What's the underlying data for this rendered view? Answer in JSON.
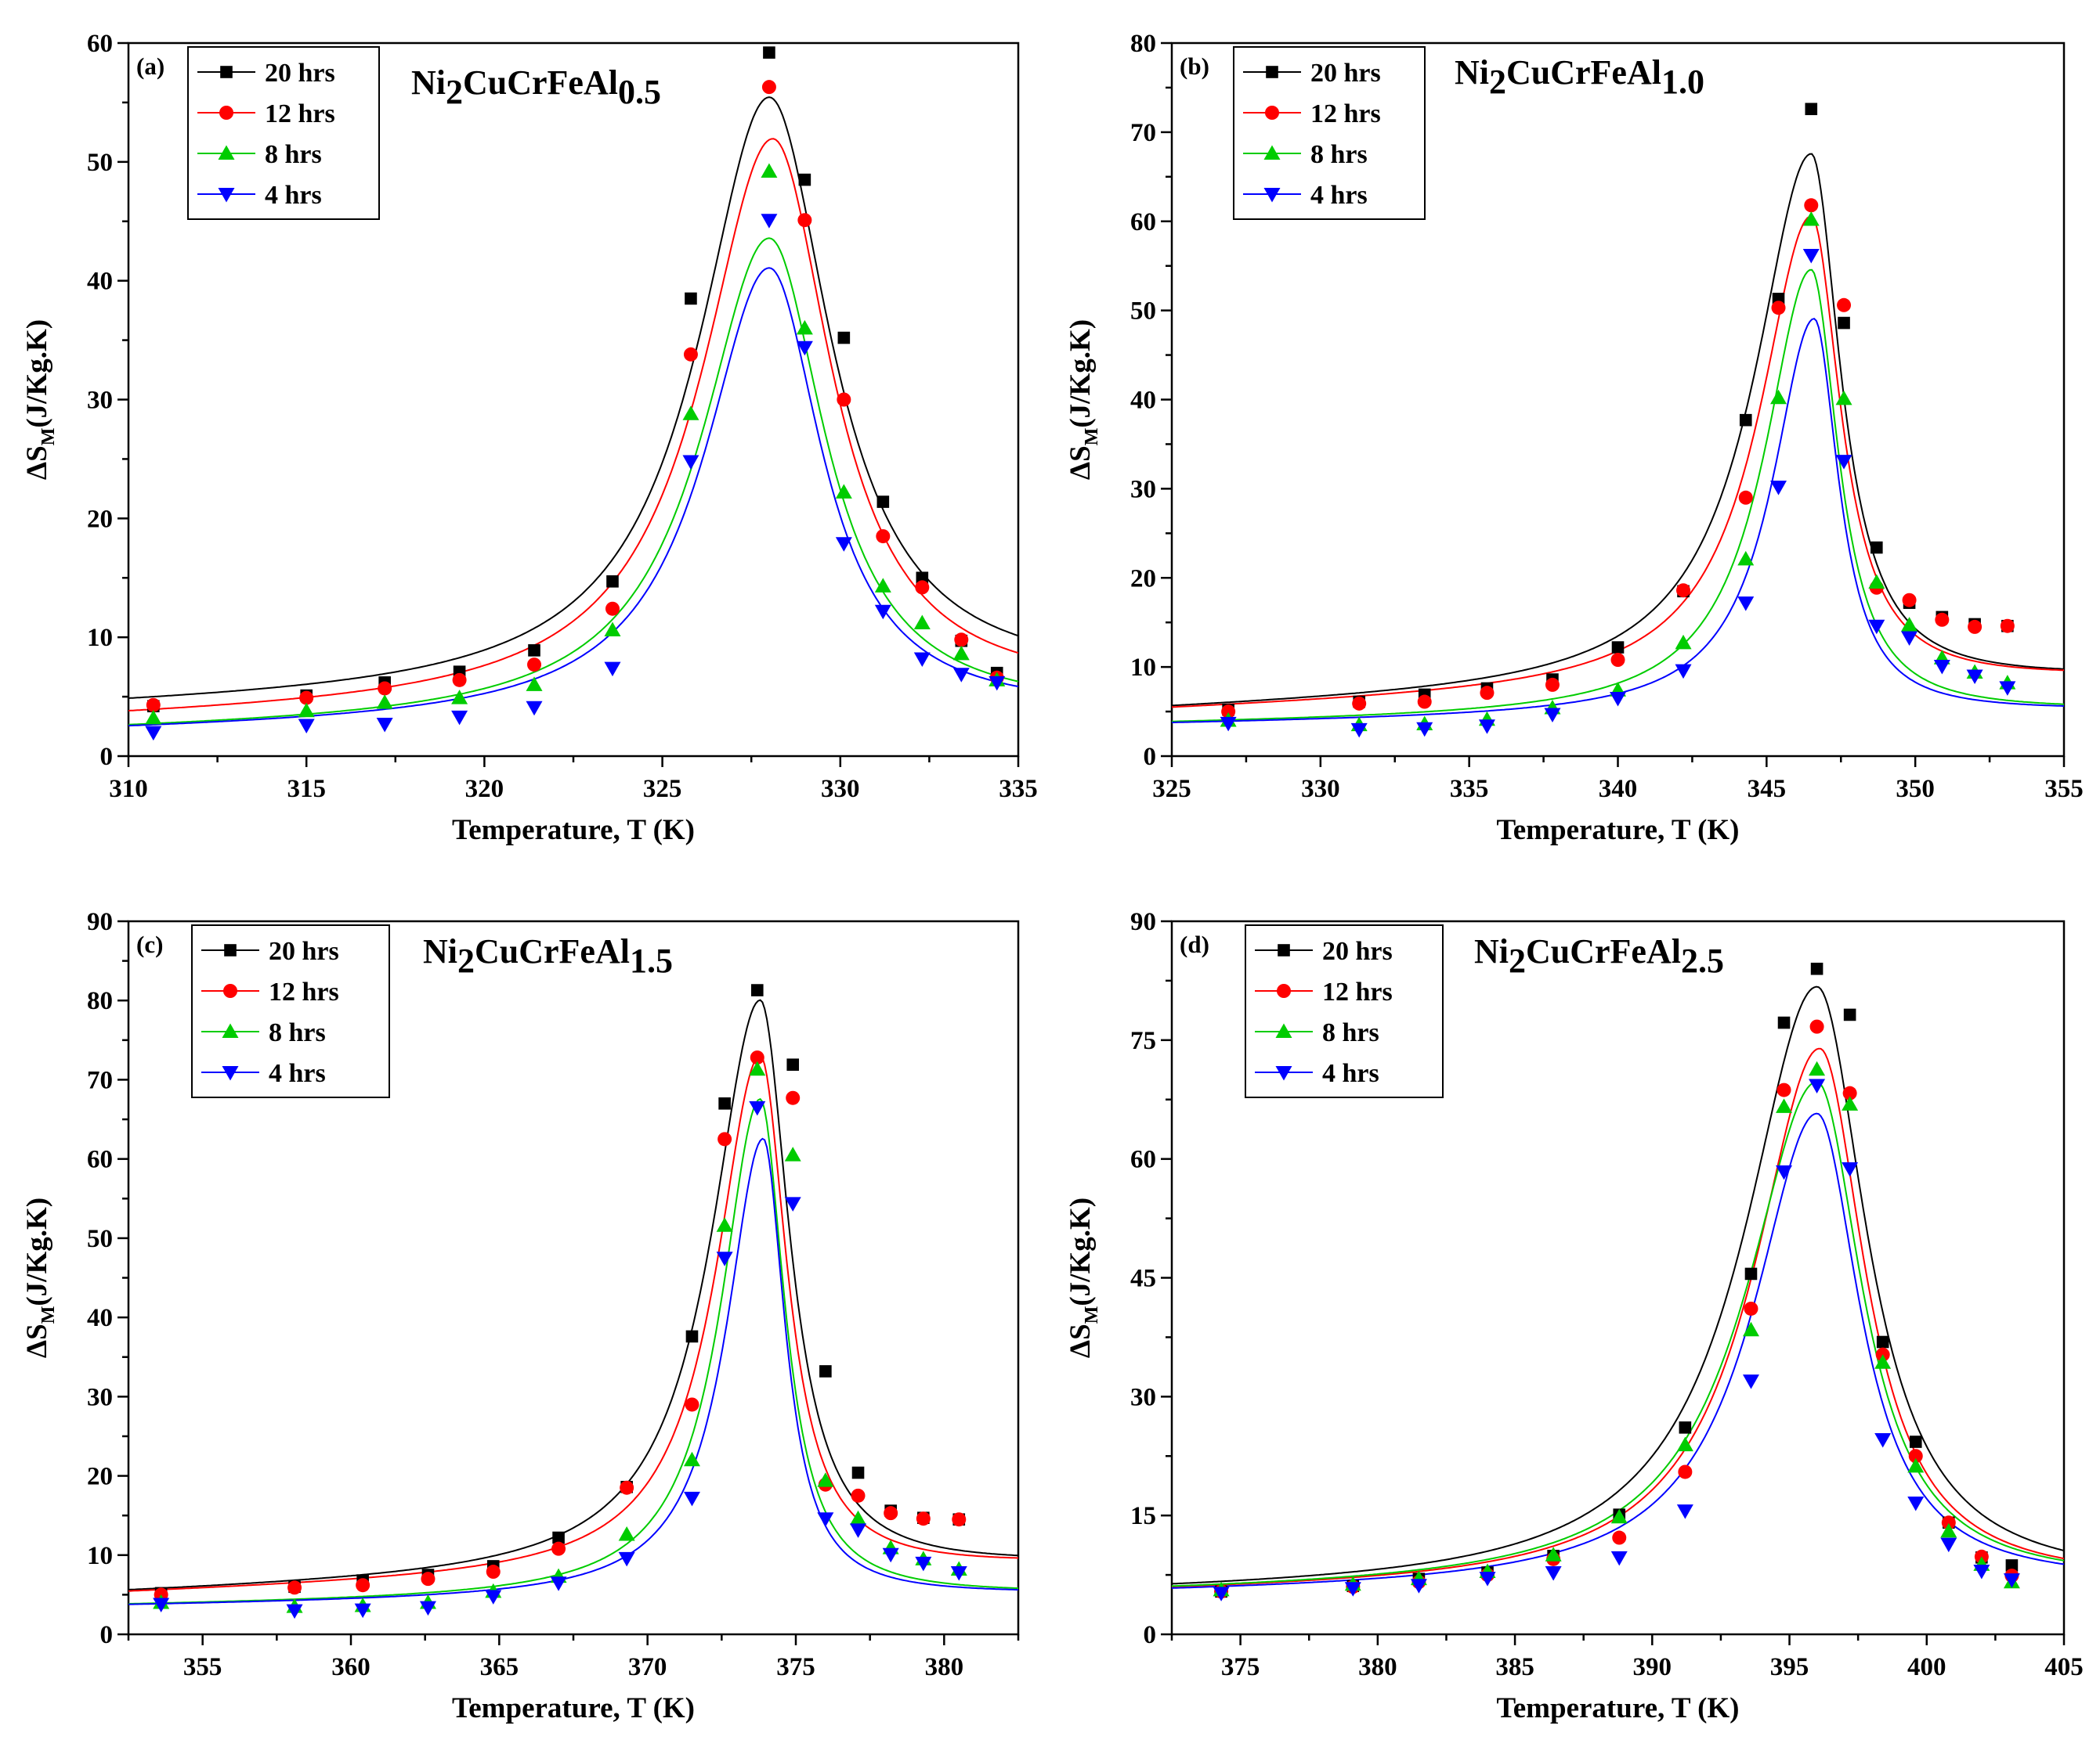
{
  "figure": {
    "legend_labels": [
      "20 hrs",
      "12 hrs",
      "8 hrs",
      "4 hrs"
    ],
    "series_colors": [
      "#000000",
      "#ff0000",
      "#00cc00",
      "#0000ff"
    ],
    "marker_shapes": [
      "square",
      "circle",
      "triangle-up",
      "triangle-down"
    ]
  },
  "chart_data": [
    {
      "type": "scatter",
      "panel": "(a)",
      "title_main": "Ni",
      "title_sub1": "2",
      "title_mid": "CuCrFeAl",
      "title_sub2": "0.5",
      "xlabel": "Temperature, T (K)",
      "ylabel_main": "ΔS",
      "ylabel_sub": "M",
      "ylabel_tail": "(J/Kg.K)",
      "xlim": [
        310,
        335
      ],
      "ylim": [
        0,
        60
      ],
      "xticks": [
        310,
        315,
        320,
        325,
        330,
        335
      ],
      "yticks": [
        0,
        10,
        20,
        30,
        40,
        50,
        60
      ],
      "fit": {
        "base": [
          4.0,
          3.0,
          2.0,
          2.0
        ],
        "slope": [
          0.08,
          0.08,
          0.06,
          0.06
        ],
        "amp": [
          50.0,
          47.5,
          40.5,
          38.0
        ],
        "center": [
          328.0,
          328.1,
          328.0,
          328.0
        ],
        "hl": [
          2.4,
          2.4,
          2.3,
          2.2
        ],
        "hr": [
          2.1,
          2.0,
          1.9,
          1.8
        ]
      },
      "series": [
        {
          "name": "20 hrs",
          "x": [
            310.7,
            315.0,
            317.2,
            319.3,
            321.4,
            323.6,
            325.8,
            328.0,
            329.0,
            330.1,
            331.2,
            332.3,
            333.4,
            334.4
          ],
          "y": [
            4.2,
            5.1,
            6.2,
            7.1,
            8.9,
            14.7,
            38.5,
            59.2,
            48.5,
            35.2,
            21.4,
            15.0,
            9.7,
            7.0
          ]
        },
        {
          "name": "12 hrs",
          "x": [
            310.7,
            315.0,
            317.2,
            319.3,
            321.4,
            323.6,
            325.8,
            328.0,
            329.0,
            330.1,
            331.2,
            332.3,
            333.4,
            334.4
          ],
          "y": [
            4.3,
            4.9,
            5.7,
            6.4,
            7.7,
            12.4,
            33.8,
            56.3,
            45.1,
            30.0,
            18.5,
            14.2,
            9.8,
            6.6
          ]
        },
        {
          "name": "8 hrs",
          "x": [
            310.7,
            315.0,
            317.2,
            319.3,
            321.4,
            323.6,
            325.8,
            328.0,
            329.0,
            330.1,
            331.2,
            332.3,
            333.4,
            334.4
          ],
          "y": [
            3.2,
            3.8,
            4.5,
            4.9,
            6.0,
            10.6,
            28.8,
            49.2,
            36.0,
            22.2,
            14.3,
            11.2,
            8.6,
            6.4
          ]
        },
        {
          "name": "4 hrs",
          "x": [
            310.7,
            315.0,
            317.2,
            319.3,
            321.4,
            323.6,
            325.8,
            328.0,
            329.0,
            330.1,
            331.2,
            332.3,
            333.4,
            334.4
          ],
          "y": [
            2.0,
            2.6,
            2.7,
            3.3,
            4.1,
            7.4,
            24.8,
            45.1,
            34.4,
            17.9,
            12.2,
            8.2,
            6.9,
            6.2
          ]
        }
      ]
    },
    {
      "type": "scatter",
      "panel": "(b)",
      "title_main": "Ni",
      "title_sub1": "2",
      "title_mid": "CuCrFeAl",
      "title_sub2": "1.0",
      "xlabel": "Temperature, T (K)",
      "ylabel_main": "ΔS",
      "ylabel_sub": "M",
      "ylabel_tail": "(J/Kg.K)",
      "xlim": [
        325,
        355
      ],
      "ylim": [
        0,
        80
      ],
      "xticks": [
        325,
        330,
        335,
        340,
        345,
        350,
        355
      ],
      "yticks": [
        0,
        10,
        20,
        30,
        40,
        50,
        60,
        70,
        80
      ],
      "fit": {
        "base": [
          5.0,
          5.0,
          3.5,
          3.5
        ],
        "slope": [
          0.12,
          0.12,
          0.05,
          0.05
        ],
        "amp": [
          60.0,
          53.0,
          50.0,
          44.5
        ],
        "center": [
          346.5,
          346.5,
          346.5,
          346.6
        ],
        "hl": [
          2.3,
          2.1,
          1.9,
          1.7
        ],
        "hr": [
          1.2,
          1.2,
          1.1,
          1.0
        ]
      },
      "series": [
        {
          "name": "20 hrs",
          "x": [
            326.9,
            331.3,
            333.5,
            335.6,
            337.8,
            340.0,
            342.2,
            344.3,
            345.4,
            346.5,
            347.6,
            348.7,
            349.8,
            350.9,
            352.0,
            353.1
          ],
          "y": [
            5.2,
            6.1,
            6.9,
            7.6,
            8.6,
            12.2,
            18.5,
            37.7,
            51.3,
            72.6,
            48.6,
            23.4,
            17.2,
            15.6,
            14.8,
            14.6
          ]
        },
        {
          "name": "12 hrs",
          "x": [
            326.9,
            331.3,
            333.5,
            335.6,
            337.8,
            340.0,
            342.2,
            344.3,
            345.4,
            346.5,
            347.6,
            348.7,
            349.8,
            350.9,
            352.0,
            353.1
          ],
          "y": [
            5.0,
            5.9,
            6.1,
            7.1,
            8.0,
            10.8,
            18.6,
            29.0,
            50.3,
            61.8,
            50.6,
            18.9,
            17.5,
            15.3,
            14.5,
            14.6
          ]
        },
        {
          "name": "8 hrs",
          "x": [
            326.9,
            331.3,
            333.5,
            335.6,
            337.8,
            340.0,
            342.2,
            344.3,
            345.4,
            346.5,
            347.6,
            348.7,
            349.8,
            350.9,
            352.0,
            353.1
          ],
          "y": [
            4.0,
            3.5,
            3.6,
            4.1,
            5.4,
            7.4,
            12.7,
            22.1,
            40.2,
            60.2,
            40.1,
            19.5,
            14.7,
            11.0,
            9.4,
            8.2
          ]
        },
        {
          "name": "4 hrs",
          "x": [
            326.9,
            331.3,
            333.5,
            335.6,
            337.8,
            340.0,
            342.2,
            344.3,
            345.4,
            346.5,
            347.6,
            348.7,
            349.8,
            350.9,
            352.0,
            353.1
          ],
          "y": [
            3.7,
            3.0,
            3.1,
            3.4,
            4.7,
            6.5,
            9.6,
            17.2,
            30.2,
            56.2,
            33.1,
            14.6,
            13.3,
            10.1,
            9.0,
            7.7
          ]
        }
      ]
    },
    {
      "type": "scatter",
      "panel": "(c)",
      "title_main": "Ni",
      "title_sub1": "2",
      "title_mid": "CuCrFeAl",
      "title_sub2": "1.5",
      "xlabel": "Temperature, T (K)",
      "ylabel_main": "ΔS",
      "ylabel_sub": "M",
      "ylabel_tail": "(J/Kg.K)",
      "xlim": [
        352.5,
        382.5
      ],
      "ylim": [
        0,
        90
      ],
      "xticks": [
        355,
        360,
        365,
        370,
        375,
        380
      ],
      "yticks": [
        0,
        10,
        20,
        30,
        40,
        50,
        60,
        70,
        80,
        90
      ],
      "fit": {
        "base": [
          5.0,
          5.0,
          3.5,
          3.5
        ],
        "slope": [
          0.12,
          0.12,
          0.05,
          0.05
        ],
        "amp": [
          72.5,
          65.5,
          63.0,
          58.0
        ],
        "center": [
          373.8,
          373.8,
          373.8,
          373.9
        ],
        "hl": [
          2.0,
          1.8,
          1.6,
          1.5
        ],
        "hr": [
          1.2,
          1.1,
          1.0,
          0.9
        ]
      },
      "series": [
        {
          "name": "20 hrs",
          "x": [
            353.6,
            358.1,
            360.4,
            362.6,
            364.8,
            367.0,
            369.3,
            371.5,
            372.6,
            373.7,
            374.9,
            376.0,
            377.1,
            378.2,
            379.3,
            380.5
          ],
          "y": [
            5.2,
            6.0,
            6.8,
            7.5,
            8.6,
            12.2,
            18.6,
            37.6,
            67.0,
            81.3,
            71.9,
            33.2,
            20.4,
            15.6,
            14.7,
            14.5
          ]
        },
        {
          "name": "12 hrs",
          "x": [
            353.6,
            358.1,
            360.4,
            362.6,
            364.8,
            367.0,
            369.3,
            371.5,
            372.6,
            373.7,
            374.9,
            376.0,
            377.1,
            378.2,
            379.3,
            380.5
          ],
          "y": [
            5.0,
            5.9,
            6.2,
            7.0,
            7.9,
            10.8,
            18.5,
            29.0,
            62.5,
            72.8,
            67.7,
            18.9,
            17.5,
            15.3,
            14.6,
            14.5
          ]
        },
        {
          "name": "8 hrs",
          "x": [
            353.6,
            358.1,
            360.4,
            362.6,
            364.8,
            367.0,
            369.3,
            371.5,
            372.6,
            373.7,
            374.9,
            376.0,
            377.1,
            378.2,
            379.3,
            380.5
          ],
          "y": [
            4.0,
            3.5,
            3.6,
            4.0,
            5.4,
            7.3,
            12.6,
            22.0,
            51.6,
            71.3,
            60.5,
            19.4,
            14.6,
            10.9,
            9.5,
            8.2
          ]
        },
        {
          "name": "4 hrs",
          "x": [
            353.6,
            358.1,
            360.4,
            362.6,
            364.8,
            367.0,
            369.3,
            371.5,
            372.6,
            373.7,
            374.9,
            376.0,
            377.1,
            378.2,
            379.3,
            380.5
          ],
          "y": [
            3.8,
            3.0,
            3.1,
            3.4,
            4.8,
            6.5,
            9.6,
            17.2,
            47.5,
            66.5,
            54.4,
            14.6,
            13.2,
            10.1,
            9.0,
            7.8
          ]
        }
      ]
    },
    {
      "type": "scatter",
      "panel": "(d)",
      "title_main": "Ni",
      "title_sub1": "2",
      "title_mid": "CuCrFeAl",
      "title_sub2": "2.5",
      "xlabel": "Temperature, T (K)",
      "ylabel_main": "ΔS",
      "ylabel_sub": "M",
      "ylabel_tail": "(J/Kg.K)",
      "xlim": [
        372.5,
        405
      ],
      "ylim": [
        0,
        90
      ],
      "xticks": [
        375,
        380,
        385,
        390,
        395,
        400,
        405
      ],
      "yticks": [
        0,
        15,
        30,
        45,
        60,
        75,
        90
      ],
      "fit": {
        "base": [
          5.0,
          5.0,
          5.0,
          5.0
        ],
        "slope": [
          0.04,
          0.04,
          0.04,
          0.04
        ],
        "amp": [
          75.8,
          68.0,
          63.8,
          59.8
        ],
        "center": [
          396.0,
          396.1,
          396.0,
          396.0
        ],
        "hl": [
          3.2,
          2.9,
          3.1,
          2.8
        ],
        "hr": [
          2.2,
          2.0,
          2.0,
          1.9
        ]
      },
      "series": [
        {
          "name": "20 hrs",
          "x": [
            374.3,
            379.1,
            381.5,
            384.0,
            386.4,
            388.8,
            391.2,
            393.6,
            394.8,
            396.0,
            397.2,
            398.4,
            399.6,
            400.8,
            402.0,
            403.1
          ],
          "y": [
            5.4,
            6.1,
            7.0,
            7.8,
            9.9,
            15.1,
            26.1,
            45.5,
            77.2,
            84.0,
            78.2,
            36.9,
            24.3,
            14.1,
            9.7,
            8.7
          ]
        },
        {
          "name": "12 hrs",
          "x": [
            374.3,
            379.1,
            381.5,
            384.0,
            386.4,
            388.8,
            391.2,
            393.6,
            394.8,
            396.0,
            397.2,
            398.4,
            399.6,
            400.8,
            402.0,
            403.1
          ],
          "y": [
            5.4,
            6.0,
            6.6,
            7.5,
            9.5,
            12.2,
            20.5,
            41.1,
            68.7,
            76.7,
            68.3,
            35.3,
            22.5,
            14.1,
            9.8,
            7.4
          ]
        },
        {
          "name": "8 hrs",
          "x": [
            374.3,
            379.1,
            381.5,
            384.0,
            386.4,
            388.8,
            391.2,
            393.6,
            394.8,
            396.0,
            397.2,
            398.4,
            399.6,
            400.8,
            402.0,
            403.1
          ],
          "y": [
            5.6,
            6.3,
            7.0,
            7.9,
            10.0,
            14.8,
            23.9,
            38.4,
            66.6,
            71.3,
            66.9,
            34.3,
            21.2,
            13.0,
            8.8,
            6.6
          ]
        },
        {
          "name": "4 hrs",
          "x": [
            374.3,
            379.1,
            381.5,
            384.0,
            386.4,
            388.8,
            391.2,
            393.6,
            394.8,
            396.0,
            397.2,
            398.4,
            399.6,
            400.8,
            402.0,
            403.1
          ],
          "y": [
            5.2,
            5.8,
            6.2,
            7.1,
            7.8,
            9.7,
            15.6,
            32.0,
            58.4,
            69.3,
            58.8,
            24.6,
            16.6,
            11.4,
            8.0,
            6.9
          ]
        }
      ]
    }
  ]
}
